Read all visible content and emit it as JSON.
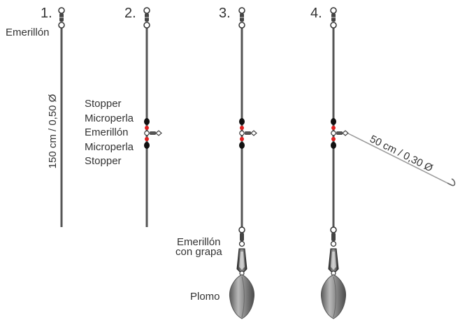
{
  "steps": [
    "1.",
    "2.",
    "3.",
    "4."
  ],
  "labels": {
    "swivel": "Emerillón",
    "line_spec": "150 cm / 0,50 Ø",
    "stopper_top": "Stopper",
    "microbead_top": "Microperla",
    "swivel_mid": "Emerillón",
    "microbead_bottom": "Microperla",
    "stopper_bottom": "Stopper",
    "snap_swivel_line1": "Emerillón",
    "snap_swivel_line2": "con grapa",
    "sinker": "Plomo",
    "leader_spec": "50 cm / 0,30 Ø"
  },
  "colors": {
    "line": "#555555",
    "stopper": "#111111",
    "microbead": "#e02020",
    "metal": "#7a7a7a",
    "sinker": "#8e8e8e",
    "leader": "#9a9a9a",
    "text": "#333333"
  }
}
